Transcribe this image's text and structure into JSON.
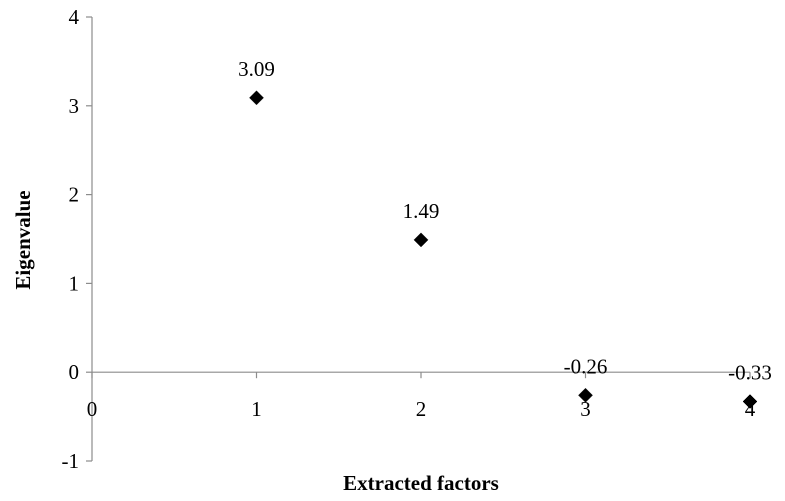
{
  "chart_data": {
    "type": "scatter",
    "title": "",
    "xlabel": "Extracted factors",
    "ylabel": "Eigenvalue",
    "xlim": [
      0,
      4
    ],
    "ylim": [
      -1,
      4
    ],
    "x_ticks": [
      "0",
      "1",
      "2",
      "3",
      "4"
    ],
    "y_ticks": [
      "-1",
      "0",
      "1",
      "2",
      "3",
      "4"
    ],
    "grid": false,
    "legend": "none",
    "marker": "diamond",
    "marker_color": "#000000",
    "points": [
      {
        "x": 1,
        "y": 3.09,
        "label": "3.09"
      },
      {
        "x": 2,
        "y": 1.49,
        "label": "1.49"
      },
      {
        "x": 3,
        "y": -0.26,
        "label": "-0.26"
      },
      {
        "x": 4,
        "y": -0.33,
        "label": "-0.33"
      }
    ]
  }
}
